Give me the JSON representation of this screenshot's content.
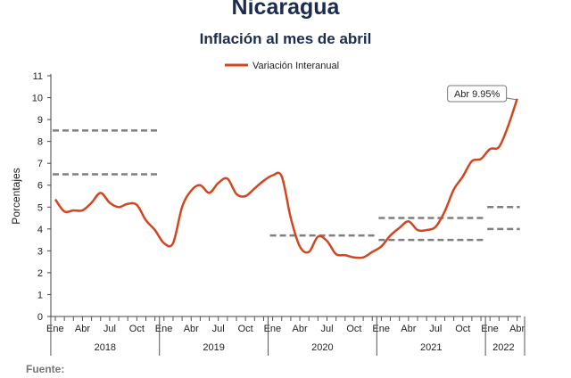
{
  "title": "Nicaragua",
  "subtitle": "Inflación al mes de abril",
  "source_label": "Fuente:",
  "chart_data": {
    "type": "line",
    "ylabel": "Porcentajes",
    "ylim": [
      0,
      11
    ],
    "yticks": [
      0,
      1,
      2,
      3,
      4,
      5,
      6,
      7,
      8,
      9,
      10,
      11
    ],
    "month_labels": [
      "Ene",
      "Abr",
      "Jul",
      "Oct"
    ],
    "years": [
      "2018",
      "2019",
      "2020",
      "2021",
      "2022"
    ],
    "series": [
      {
        "name": "Variación Interanual",
        "color": "#d2461f",
        "x": [
          "2018-01",
          "2018-02",
          "2018-03",
          "2018-04",
          "2018-05",
          "2018-06",
          "2018-07",
          "2018-08",
          "2018-09",
          "2018-10",
          "2018-11",
          "2018-12",
          "2019-01",
          "2019-02",
          "2019-03",
          "2019-04",
          "2019-05",
          "2019-06",
          "2019-07",
          "2019-08",
          "2019-09",
          "2019-10",
          "2019-11",
          "2019-12",
          "2020-01",
          "2020-02",
          "2020-03",
          "2020-04",
          "2020-05",
          "2020-06",
          "2020-07",
          "2020-08",
          "2020-09",
          "2020-10",
          "2020-11",
          "2020-12",
          "2021-01",
          "2021-02",
          "2021-03",
          "2021-04",
          "2021-05",
          "2021-06",
          "2021-07",
          "2021-08",
          "2021-09",
          "2021-10",
          "2021-11",
          "2021-12",
          "2022-01",
          "2022-02",
          "2022-03",
          "2022-04"
        ],
        "values": [
          5.35,
          4.8,
          4.85,
          4.85,
          5.2,
          5.65,
          5.2,
          5.0,
          5.15,
          5.1,
          4.4,
          3.95,
          3.35,
          3.35,
          5.0,
          5.75,
          6.0,
          5.65,
          6.1,
          6.3,
          5.6,
          5.5,
          5.85,
          6.2,
          6.45,
          6.4,
          4.5,
          3.2,
          2.95,
          3.65,
          3.45,
          2.85,
          2.8,
          2.7,
          2.7,
          2.95,
          3.2,
          3.7,
          4.05,
          4.35,
          3.95,
          3.95,
          4.1,
          4.8,
          5.8,
          6.4,
          7.1,
          7.2,
          7.65,
          7.75,
          8.7,
          9.95
        ]
      }
    ],
    "reference_lines": [
      {
        "values": [
          8.5,
          6.5
        ],
        "from": "2018-01",
        "to": "2018-12"
      },
      {
        "values": [
          3.7
        ],
        "from": "2020-01",
        "to": "2020-12"
      },
      {
        "values": [
          4.5,
          3.5
        ],
        "from": "2021-01",
        "to": "2021-12"
      },
      {
        "values": [
          5.0,
          4.0
        ],
        "from": "2022-01",
        "to": "2022-04"
      }
    ],
    "annotation": {
      "text": "Abr 9.95%",
      "x": "2022-04",
      "y": 9.95
    },
    "legend_position": "top-center"
  }
}
